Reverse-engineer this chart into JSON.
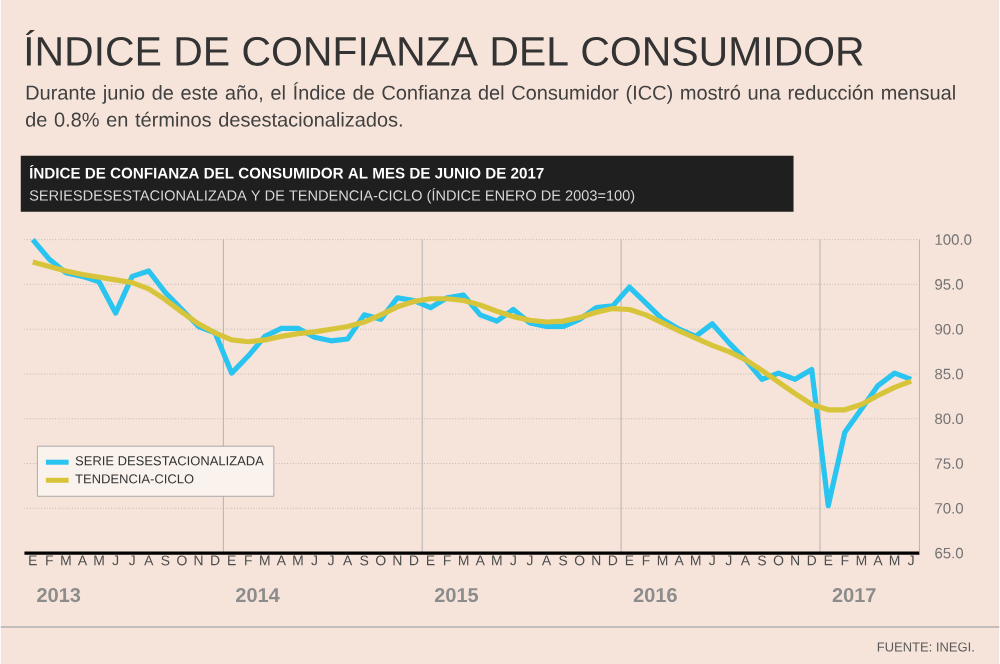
{
  "chart_data": {
    "type": "line",
    "title": "ÍNDICE DE CONFIANZA DEL CONSUMIDOR",
    "subtitle": "Durante junio de este año, el Índice de Confianza del Consumidor (ICC) mostró una reducción mensual de 0.8% en términos desestacionalizados.",
    "annotations": [
      "ÍNDICE DE CONFIANZA DEL CONSUMIDOR AL MES DE JUNIO DE 2017",
      "SERIESDESESTACIONALIZADA Y DE TENDENCIA-CICLO  (ÍNDICE ENERO DE 2003=100)",
      "2013",
      "2014",
      "2015",
      "2016",
      "2017",
      "FUENTE: INEGI."
    ],
    "categories": [
      "E",
      "F",
      "M",
      "A",
      "M",
      "J",
      "J",
      "A",
      "S",
      "O",
      "N",
      "D",
      "E",
      "F",
      "M",
      "A",
      "M",
      "J",
      "J",
      "A",
      "S",
      "O",
      "N",
      "D",
      "E",
      "F",
      "M",
      "A",
      "M",
      "J",
      "J",
      "A",
      "S",
      "O",
      "N",
      "D",
      "E",
      "F",
      "M",
      "A",
      "M",
      "J",
      "J",
      "A",
      "S",
      "O",
      "N",
      "D",
      "E",
      "F",
      "M",
      "A",
      "M",
      "J"
    ],
    "series": [
      {
        "name": "SERIE DESESTACIONALIZADA",
        "color": "#29c4f0",
        "values": [
          100.0,
          97.8,
          96.3,
          95.9,
          95.3,
          91.8,
          95.9,
          96.5,
          94.1,
          92.2,
          90.3,
          89.6,
          85.1,
          87.0,
          89.2,
          90.1,
          90.1,
          89.1,
          88.7,
          88.9,
          91.6,
          91.1,
          93.5,
          93.2,
          92.4,
          93.5,
          93.8,
          91.6,
          90.9,
          92.2,
          90.7,
          90.3,
          90.3,
          91.1,
          92.4,
          92.6,
          94.7,
          92.9,
          91.1,
          90.0,
          89.2,
          90.6,
          88.5,
          86.6,
          84.4,
          85.1,
          84.4,
          85.5,
          70.3,
          78.5,
          81.1,
          83.7,
          85.1,
          84.4
        ]
      },
      {
        "name": "TENDENCIA-CICLO",
        "color": "#d8c43a",
        "values": [
          97.5,
          97.0,
          96.5,
          96.1,
          95.8,
          95.5,
          95.2,
          94.5,
          93.3,
          91.9,
          90.6,
          89.6,
          88.8,
          88.6,
          88.8,
          89.2,
          89.5,
          89.7,
          90.0,
          90.3,
          90.8,
          91.6,
          92.5,
          93.1,
          93.4,
          93.4,
          93.2,
          92.7,
          92.0,
          91.4,
          91.0,
          90.8,
          90.9,
          91.3,
          91.9,
          92.3,
          92.2,
          91.6,
          90.7,
          89.8,
          89.0,
          88.2,
          87.5,
          86.6,
          85.4,
          84.1,
          82.8,
          81.6,
          81.0,
          81.0,
          81.6,
          82.6,
          83.5,
          84.2
        ]
      }
    ],
    "ylim": [
      65,
      100
    ],
    "yticks": [
      {
        "value": 65,
        "label": "65.0"
      },
      {
        "value": 70,
        "label": "70.0"
      },
      {
        "value": 75,
        "label": "75.0"
      },
      {
        "value": 80,
        "label": "80.0"
      },
      {
        "value": 85,
        "label": "85.0"
      },
      {
        "value": 90,
        "label": "90.0"
      },
      {
        "value": 95,
        "label": "95.0"
      },
      {
        "value": 100,
        "label": "100.0"
      }
    ],
    "grid": "y",
    "legend": "left"
  }
}
